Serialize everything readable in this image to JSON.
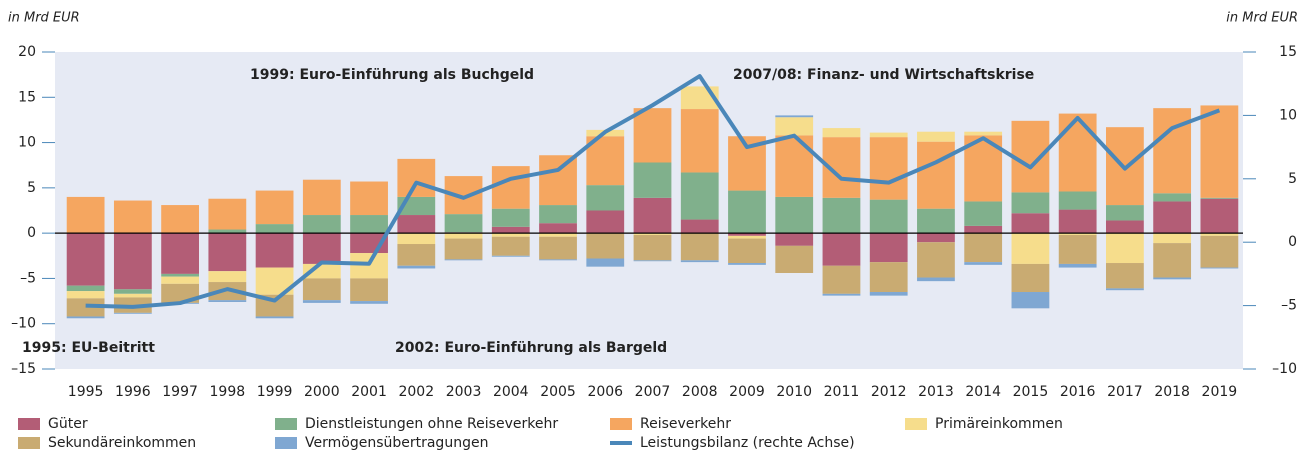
{
  "chart_data": {
    "type": "bar",
    "y_label": "in Mrd EUR",
    "y2_label": "in Mrd EUR",
    "annotations": [
      "1999: Euro-Einführung als Buchgeld",
      "2007/08: Finanz- und Wirtschaftskrise",
      "1995: EU-Beitritt",
      "2002: Euro-Einführung als Bargeld"
    ],
    "stacked": true,
    "categories": [
      "1995",
      "1996",
      "1997",
      "1998",
      "1999",
      "2000",
      "2001",
      "2002",
      "2003",
      "2004",
      "2005",
      "2006",
      "2007",
      "2008",
      "2009",
      "2010",
      "2011",
      "2012",
      "2013",
      "2014",
      "2015",
      "2016",
      "2017",
      "2018",
      "2019"
    ],
    "ylim": [
      -15,
      20
    ],
    "yticks": [
      20,
      15,
      10,
      5,
      0,
      {
        "value": -5,
        "label": "–5"
      },
      {
        "value": -10,
        "label": "–10"
      },
      {
        "value": -15,
        "label": "–15"
      }
    ],
    "y2lim": [
      -10,
      15
    ],
    "y2ticks": [
      15,
      10,
      5,
      0,
      {
        "value": -5,
        "label": "–5"
      },
      {
        "value": -10,
        "label": "–10"
      }
    ],
    "series": [
      {
        "name": "Güter",
        "color": "#b35d76",
        "values": [
          -5.8,
          -6.2,
          -4.5,
          -4.2,
          -3.8,
          -3.4,
          -2.2,
          2.0,
          0.1,
          0.7,
          1.1,
          2.5,
          3.9,
          1.5,
          -0.3,
          -1.4,
          -3.6,
          -3.2,
          -1.0,
          0.8,
          2.2,
          2.6,
          1.4,
          3.5,
          3.8
        ]
      },
      {
        "name": "Dienstleistungen ohne Reiseverkehr",
        "color": "#80b08c",
        "values": [
          -0.6,
          -0.5,
          -0.3,
          0.4,
          1.0,
          2.0,
          2.0,
          2.0,
          2.0,
          2.0,
          2.0,
          2.8,
          3.9,
          5.2,
          4.7,
          4.0,
          3.9,
          3.7,
          2.7,
          2.7,
          2.3,
          2.0,
          1.7,
          0.9,
          0.1
        ]
      },
      {
        "name": "Reiseverkehr",
        "color": "#f5a660",
        "values": [
          4.0,
          3.6,
          3.1,
          3.4,
          3.7,
          3.9,
          3.7,
          4.2,
          4.2,
          4.7,
          5.5,
          5.4,
          6.0,
          7.0,
          6.0,
          6.8,
          6.7,
          6.9,
          7.4,
          7.3,
          7.9,
          8.6,
          8.6,
          9.4,
          10.2
        ]
      },
      {
        "name": "Primäreinkommen",
        "color": "#f6dd8c",
        "values": [
          -0.8,
          -0.4,
          -0.8,
          -1.2,
          -3.0,
          -1.6,
          -2.8,
          -1.2,
          -0.6,
          -0.4,
          -0.4,
          0.7,
          -0.2,
          2.5,
          -0.3,
          2.0,
          1.0,
          0.5,
          1.1,
          0.4,
          -3.4,
          -0.2,
          -3.3,
          -1.1,
          -0.3
        ]
      },
      {
        "name": "Sekundäreinkommen",
        "color": "#c9ab72",
        "values": [
          -2.0,
          -1.7,
          -2.1,
          -2.0,
          -2.4,
          -2.4,
          -2.5,
          -2.4,
          -2.3,
          -2.1,
          -2.5,
          -2.8,
          -2.8,
          -3.0,
          -2.7,
          -3.0,
          -3.1,
          -3.3,
          -3.9,
          -3.2,
          -3.1,
          -3.2,
          -2.8,
          -3.8,
          -3.5
        ]
      },
      {
        "name": "Vermögensübertragungen",
        "color": "#7fa7d2",
        "values": [
          -0.2,
          -0.1,
          -0.1,
          -0.2,
          -0.2,
          -0.3,
          -0.3,
          -0.3,
          -0.1,
          -0.1,
          -0.1,
          -0.9,
          -0.1,
          -0.2,
          -0.2,
          0.2,
          -0.2,
          -0.4,
          -0.4,
          -0.3,
          -1.8,
          -0.4,
          -0.2,
          -0.2,
          -0.1
        ]
      },
      {
        "name": "Leistungsbilanz (rechte Achse)",
        "color": "#4a87b9",
        "type": "line",
        "axis": "y2",
        "values": [
          -5.0,
          -5.1,
          -4.8,
          -3.7,
          -4.6,
          -1.6,
          -1.7,
          4.7,
          3.5,
          5.0,
          5.7,
          8.7,
          10.8,
          13.1,
          7.5,
          8.4,
          5.0,
          4.7,
          6.3,
          8.2,
          5.9,
          9.8,
          5.8,
          9.0,
          10.4
        ]
      }
    ]
  }
}
